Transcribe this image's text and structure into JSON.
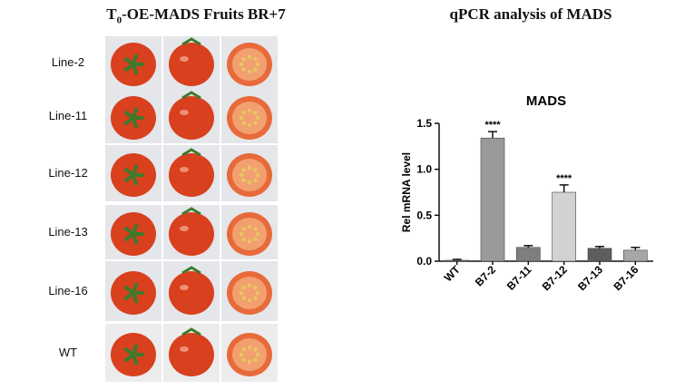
{
  "left_panel": {
    "title_prefix": "T",
    "title_sub": "0",
    "title_rest": "-OE-MADS Fruits BR+7",
    "rows": [
      {
        "label": "Line-2"
      },
      {
        "label": "Line-11"
      },
      {
        "label": "Line-12"
      },
      {
        "label": "Line-13"
      },
      {
        "label": "Line-16"
      },
      {
        "label": "WT"
      }
    ]
  },
  "right_panel": {
    "title": "qPCR analysis of MADS"
  },
  "colors": {
    "tomato_red": "#d8401e",
    "tomato_light": "#e86a3a",
    "calyx_green": "#3f7a2c",
    "seed_yellow": "#e8c860"
  },
  "chart_data": {
    "type": "bar",
    "title": "MADS",
    "xlabel": "",
    "ylabel": "Rel mRNA level",
    "ylim": [
      0,
      1.5
    ],
    "yticks": [
      "0.0",
      "0.5",
      "1.0",
      "1.5"
    ],
    "categories": [
      "WT",
      "B7-2",
      "B7-11",
      "B7-12",
      "B7-13",
      "B7-16"
    ],
    "values": [
      0.01,
      1.34,
      0.15,
      0.75,
      0.14,
      0.12
    ],
    "errors": [
      0.01,
      0.07,
      0.02,
      0.08,
      0.02,
      0.03
    ],
    "bar_colors": [
      "#7a7a7a",
      "#9a9a9a",
      "#7e7e7e",
      "#d2d2d2",
      "#5e5e5e",
      "#a6a6a6"
    ],
    "annotations": [
      "",
      "****",
      "",
      "****",
      "",
      ""
    ]
  }
}
